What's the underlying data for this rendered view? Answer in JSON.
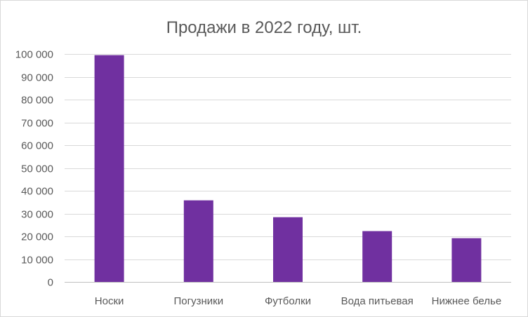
{
  "chart_data": {
    "type": "bar",
    "title": "Продажи в 2022 году, шт.",
    "categories": [
      "Носки",
      "Погузники",
      "Футболки",
      "Вода питьевая",
      "Нижнее белье"
    ],
    "values": [
      99500,
      35800,
      28400,
      22300,
      19200
    ],
    "ylim": [
      0,
      100000
    ],
    "yticks": [
      0,
      10000,
      20000,
      30000,
      40000,
      50000,
      60000,
      70000,
      80000,
      90000,
      100000
    ],
    "ytick_labels": [
      "0",
      "10 000",
      "20 000",
      "30 000",
      "40 000",
      "50 000",
      "60 000",
      "70 000",
      "80 000",
      "90 000",
      "100 000"
    ],
    "grid": true,
    "legend": "none",
    "bar_color": "#7030a0"
  }
}
